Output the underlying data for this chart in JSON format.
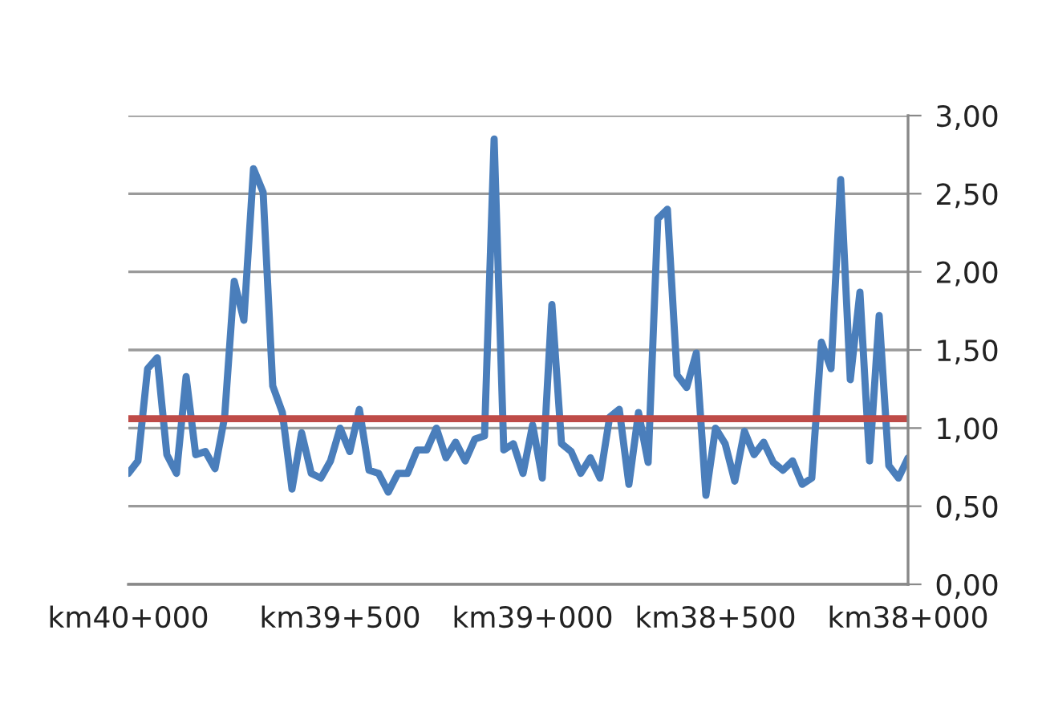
{
  "chart_data": {
    "type": "line",
    "categories": [
      "km40+000",
      null,
      null,
      null,
      null,
      null,
      null,
      null,
      null,
      null,
      null,
      null,
      null,
      null,
      null,
      null,
      null,
      null,
      null,
      null,
      null,
      null,
      "km39+500",
      null,
      null,
      null,
      null,
      null,
      null,
      null,
      null,
      null,
      null,
      null,
      null,
      null,
      null,
      null,
      null,
      null,
      null,
      null,
      "km39+000",
      null,
      null,
      null,
      null,
      null,
      null,
      null,
      null,
      null,
      null,
      null,
      null,
      null,
      null,
      null,
      null,
      null,
      null,
      "km38+500",
      null,
      null,
      null,
      null,
      null,
      null,
      null,
      null,
      null,
      null,
      null,
      null,
      null,
      null,
      null,
      null,
      null,
      null,
      null,
      "km38+000"
    ],
    "series": [
      {
        "color": "#4a7ebb",
        "values": [
          0.71,
          0.79,
          1.38,
          1.45,
          0.83,
          0.71,
          1.33,
          0.83,
          0.85,
          0.74,
          1.07,
          1.94,
          1.69,
          2.66,
          2.51,
          1.27,
          1.1,
          0.61,
          0.97,
          0.71,
          0.68,
          0.79,
          1.0,
          0.85,
          1.12,
          0.73,
          0.71,
          0.59,
          0.71,
          0.71,
          0.86,
          0.86,
          1.0,
          0.81,
          0.91,
          0.79,
          0.93,
          0.95,
          2.85,
          0.86,
          0.9,
          0.71,
          1.02,
          0.68,
          1.79,
          0.9,
          0.85,
          0.71,
          0.81,
          0.68,
          1.07,
          1.12,
          0.64,
          1.1,
          0.78,
          2.34,
          2.4,
          1.34,
          1.26,
          1.48,
          0.57,
          1.0,
          0.9,
          0.66,
          0.98,
          0.83,
          0.91,
          0.78,
          0.73,
          0.79,
          0.64,
          0.68,
          1.55,
          1.38,
          2.59,
          1.31,
          1.87,
          0.79,
          1.72,
          0.76,
          0.68,
          0.81
        ]
      }
    ],
    "ref_lines": [
      {
        "axis": "y",
        "value": 1.06,
        "color": "#be4b48"
      }
    ],
    "ylim": [
      0,
      3
    ],
    "yticks": [
      {
        "value": 0,
        "label": "0,00"
      },
      {
        "value": 0.5,
        "label": "0,50"
      },
      {
        "value": 1,
        "label": "1,00"
      },
      {
        "value": 1.5,
        "label": "1,50"
      },
      {
        "value": 2,
        "label": "2,00"
      },
      {
        "value": 2.5,
        "label": "2,50"
      },
      {
        "value": 3,
        "label": "3,00"
      }
    ],
    "grid": "y",
    "legend": false
  }
}
